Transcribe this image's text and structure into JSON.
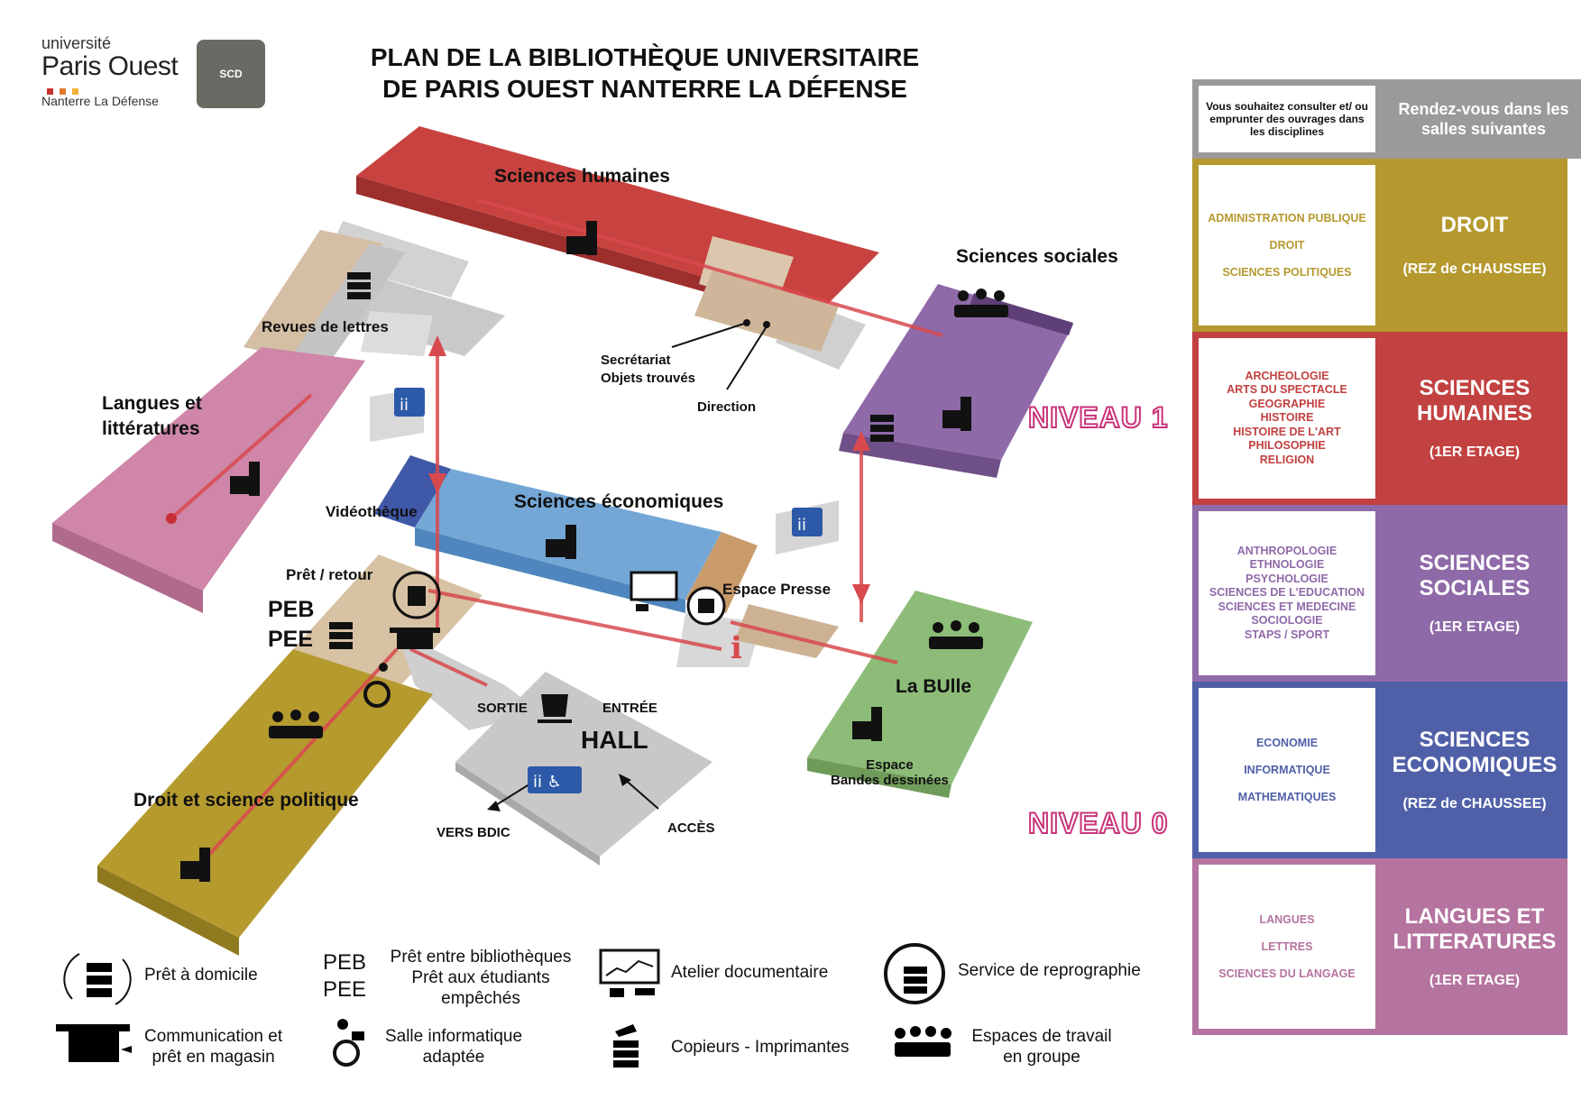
{
  "header": {
    "univ_line1": "université",
    "univ_line2": "Paris Ouest",
    "univ_line3": "Nanterre La Défense",
    "scd": "SCD",
    "title_line1": "PLAN DE LA BIBLIOTHÈQUE UNIVERSITAIRE",
    "title_line2": "DE PARIS OUEST NANTERRE LA DÉFENSE"
  },
  "colors": {
    "droit": "#b5992e",
    "sciences_humaines": "#c24141",
    "sciences_sociales": "#8f6aa8",
    "sciences_economiques": "#5060a8",
    "langues": "#b5739f",
    "header_grey": "#9b9a98",
    "niveau": "#c8337a"
  },
  "map": {
    "sciences_humaines": "Sciences humaines",
    "sciences_sociales": "Sciences sociales",
    "revues_de_lettres": "Revues de lettres",
    "langues_line1": "Langues et",
    "langues_line2": "littératures",
    "secretariat_line1": "Secrétariat",
    "secretariat_line2": "Objets trouvés",
    "direction": "Direction",
    "niveau1": "NIVEAU 1",
    "niveau0": "NIVEAU 0",
    "videotheque": "Vidéothèque",
    "sciences_economiques": "Sciences économiques",
    "pret_retour": "Prêt / retour",
    "peb": "PEB",
    "pee": "PEE",
    "espace_presse": "Espace Presse",
    "la_bulle": "La BUlle",
    "sortie": "SORTIE",
    "entree": "ENTRÉE",
    "hall": "HALL",
    "espace_line1": "Espace",
    "espace_line2": "Bandes dessinées",
    "droit_science": "Droit et science politique",
    "vers_bdic": "VERS BDIC",
    "acces": "ACCÈS"
  },
  "table": {
    "header_left": "Vous souhaitez consulter et/ ou emprunter des ouvrages dans les disciplines",
    "header_right": "Rendez-vous dans les salles suivantes",
    "rows": [
      {
        "disciplines": [
          "ADMINISTRATION PUBLIQUE",
          "DROIT",
          "SCIENCES POLITIQUES"
        ],
        "room": "DROIT",
        "floor": "(REZ de CHAUSSEE)"
      },
      {
        "disciplines": [
          "ARCHEOLOGIE",
          "ARTS DU SPECTACLE",
          "GEOGRAPHIE",
          "HISTOIRE",
          "HISTOIRE DE L'ART",
          "PHILOSOPHIE",
          "RELIGION"
        ],
        "room": "SCIENCES HUMAINES",
        "floor": "(1ER ETAGE)"
      },
      {
        "disciplines": [
          "ANTHROPOLOGIE",
          "ETHNOLOGIE",
          "PSYCHOLOGIE",
          "SCIENCES DE L'EDUCATION",
          "SCIENCES ET MEDECINE",
          "SOCIOLOGIE",
          "STAPS / SPORT"
        ],
        "room": "SCIENCES SOCIALES",
        "floor": "(1ER ETAGE)"
      },
      {
        "disciplines": [
          "ECONOMIE",
          "INFORMATIQUE",
          "MATHEMATIQUES"
        ],
        "room": "SCIENCES ECONOMIQUES",
        "floor": "(REZ de CHAUSSEE)"
      },
      {
        "disciplines": [
          "LANGUES",
          "LETTRES",
          "SCIENCES DU LANGAGE"
        ],
        "room": "LANGUES ET LITTERATURES",
        "floor": "(1ER ETAGE)"
      }
    ]
  },
  "legend": {
    "pret_domicile": "Prêt  à domicile",
    "peb": "PEB",
    "pee": "PEE",
    "peb_desc1": "Prêt entre bibliothèques",
    "peb_desc2": "Prêt aux étudiants",
    "peb_desc3": "empêchés",
    "atelier": "Atelier documentaire",
    "reprographie": "Service de reprographie",
    "communication1": "Communication et",
    "communication2": "prêt en magasin",
    "salle_info1": "Salle informatique",
    "salle_info2": "adaptée",
    "copieurs": "Copieurs - Imprimantes",
    "espaces1": "Espaces  de travail",
    "espaces2": "en groupe"
  }
}
